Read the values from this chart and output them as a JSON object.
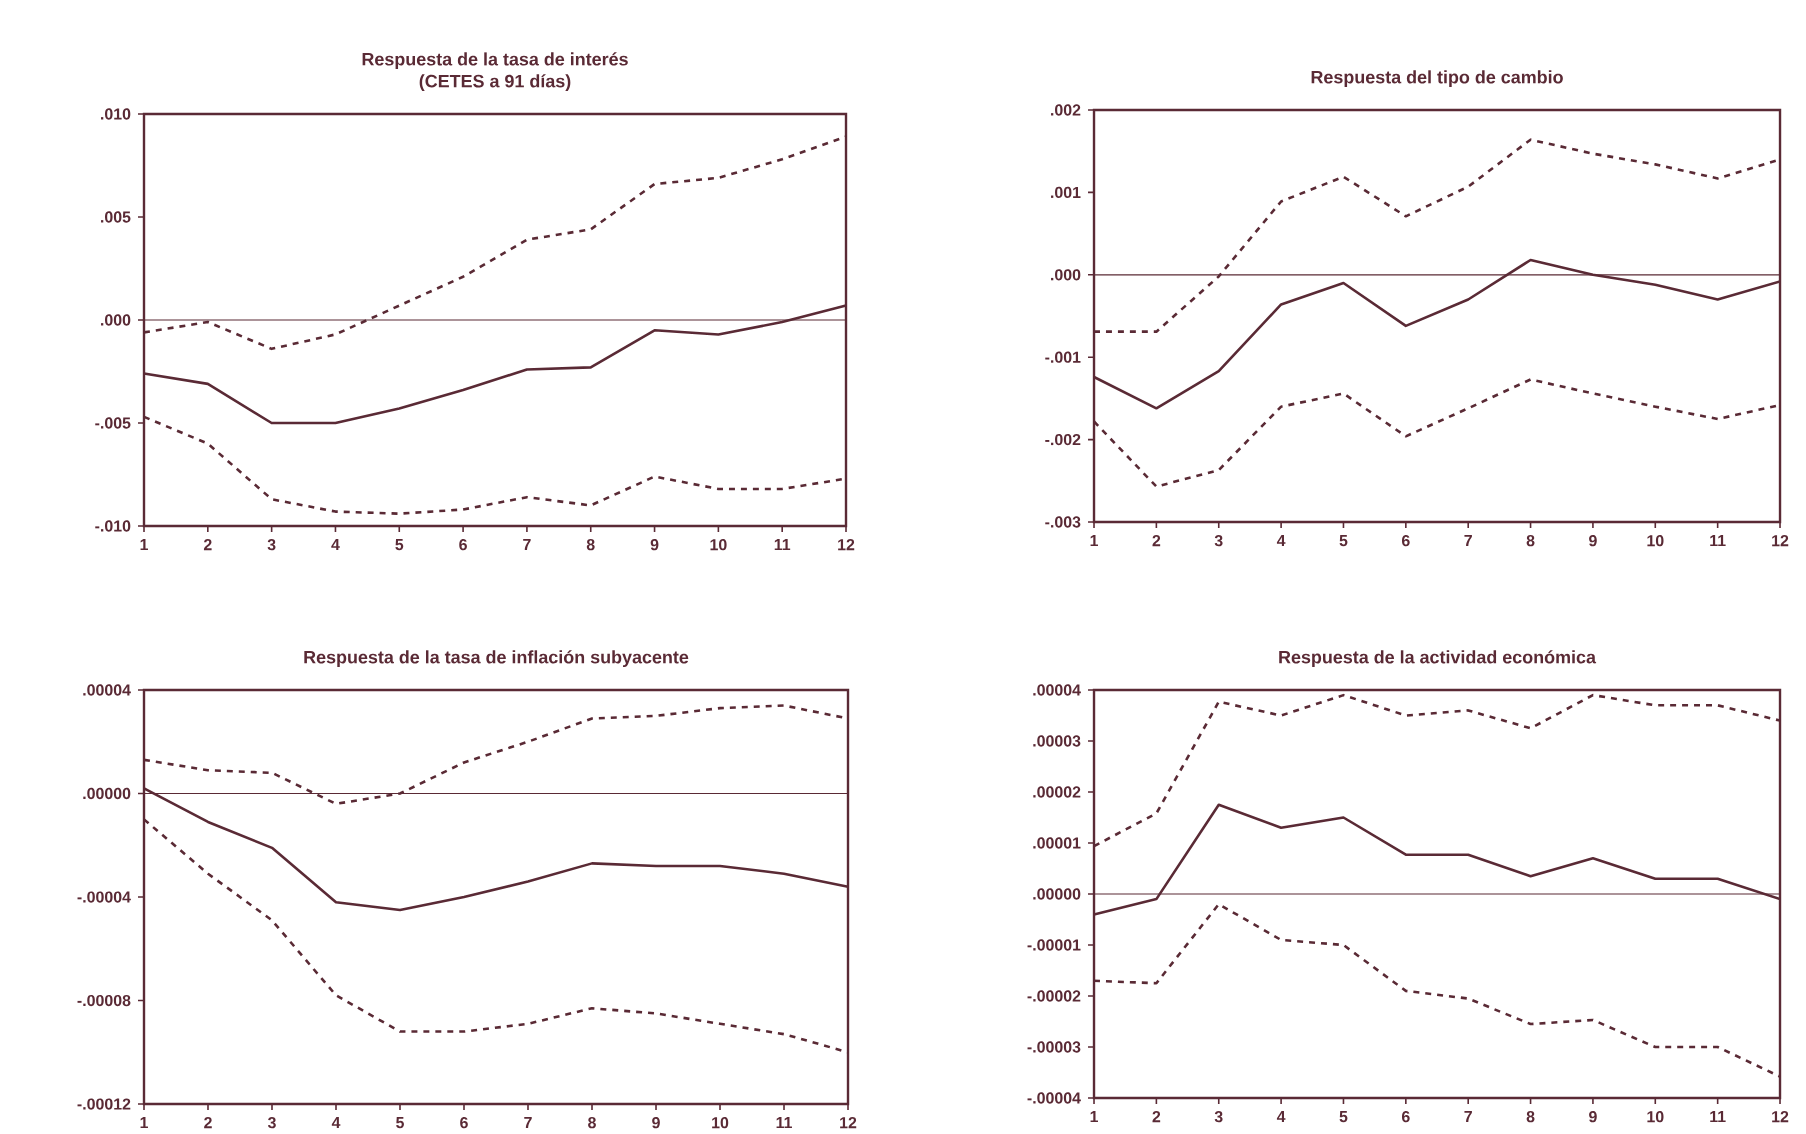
{
  "chart_data": [
    {
      "type": "line",
      "title": "Respuesta de la tasa de interés",
      "subtitle": "(CETES a 91 días)",
      "x": [
        1,
        2,
        3,
        4,
        5,
        6,
        7,
        8,
        9,
        10,
        11,
        12
      ],
      "xlim": [
        1,
        12
      ],
      "xticks": [
        1,
        2,
        3,
        4,
        5,
        6,
        7,
        8,
        9,
        10,
        11,
        12
      ],
      "ylim": [
        -0.01,
        0.01
      ],
      "yticks": [
        {
          "value": -0.01,
          "label": "-.010"
        },
        {
          "value": -0.005,
          "label": "-.005"
        },
        {
          "value": 0,
          "label": ".000"
        },
        {
          "value": 0.005,
          "label": ".005"
        },
        {
          "value": 0.01,
          "label": ".010"
        }
      ],
      "ref_lines": [
        {
          "axis": "y",
          "value": 0,
          "color": "#5a2a35"
        }
      ],
      "series": [
        {
          "color": "#5a2a35",
          "line_style": "solid",
          "values": [
            -0.0026,
            -0.0031,
            -0.005,
            -0.005,
            -0.0043,
            -0.0034,
            -0.0024,
            -0.0023,
            -0.0005,
            -0.0007,
            -0.0001,
            0.0007
          ]
        },
        {
          "color": "#5a2a35",
          "line_style": "dashed",
          "values": [
            -0.0006,
            -0.0001,
            -0.0014,
            -0.0007,
            0.0007,
            0.0021,
            0.0039,
            0.0044,
            0.0066,
            0.0069,
            0.0078,
            0.0089
          ]
        },
        {
          "color": "#5a2a35",
          "line_style": "dashed",
          "values": [
            -0.0047,
            -0.006,
            -0.0087,
            -0.0093,
            -0.0094,
            -0.0092,
            -0.0086,
            -0.009,
            -0.0076,
            -0.0082,
            -0.0082,
            -0.0077
          ]
        }
      ]
    },
    {
      "type": "line",
      "title": "Respuesta del tipo de cambio",
      "x": [
        1,
        2,
        3,
        4,
        5,
        6,
        7,
        8,
        9,
        10,
        11,
        12
      ],
      "xlim": [
        1,
        12
      ],
      "xticks": [
        1,
        2,
        3,
        4,
        5,
        6,
        7,
        8,
        9,
        10,
        11,
        12
      ],
      "ylim": [
        -0.003,
        0.002
      ],
      "yticks": [
        {
          "value": -0.003,
          "label": "-.003"
        },
        {
          "value": -0.002,
          "label": "-.002"
        },
        {
          "value": -0.001,
          "label": "-.001"
        },
        {
          "value": 0,
          "label": ".000"
        },
        {
          "value": 0.001,
          "label": ".001"
        },
        {
          "value": 0.002,
          "label": ".002"
        }
      ],
      "ref_lines": [
        {
          "axis": "y",
          "value": 0,
          "color": "#5a2a35"
        }
      ],
      "series": [
        {
          "color": "#5a2a35",
          "line_style": "solid",
          "values": [
            -0.00124,
            -0.00162,
            -0.00117,
            -0.00036,
            -0.0001,
            -0.00062,
            -0.0003,
            0.00018,
            0.0,
            -0.00012,
            -0.0003,
            -8e-05
          ]
        },
        {
          "color": "#5a2a35",
          "line_style": "dashed",
          "values": [
            -0.00069,
            -0.00069,
            -2e-05,
            0.00089,
            0.00119,
            0.00071,
            0.00107,
            0.00164,
            0.00147,
            0.00134,
            0.00117,
            0.0014
          ]
        },
        {
          "color": "#5a2a35",
          "line_style": "dashed",
          "values": [
            -0.00178,
            -0.00257,
            -0.00237,
            -0.0016,
            -0.00144,
            -0.00196,
            -0.00162,
            -0.00127,
            -0.00144,
            -0.0016,
            -0.00175,
            -0.00158
          ]
        }
      ]
    },
    {
      "type": "line",
      "title": "Respuesta de la tasa de inflación subyacente",
      "x": [
        1,
        2,
        3,
        4,
        5,
        6,
        7,
        8,
        9,
        10,
        11,
        12
      ],
      "xlim": [
        1,
        12
      ],
      "xticks": [
        1,
        2,
        3,
        4,
        5,
        6,
        7,
        8,
        9,
        10,
        11,
        12
      ],
      "ylim": [
        -0.00012,
        4e-05
      ],
      "yticks": [
        {
          "value": -0.00012,
          "label": "-.00012"
        },
        {
          "value": -8e-05,
          "label": "-.00008"
        },
        {
          "value": -4e-05,
          "label": "-.00004"
        },
        {
          "value": 0,
          "label": ".00000"
        },
        {
          "value": 4e-05,
          "label": ".00004"
        }
      ],
      "ref_lines": [
        {
          "axis": "y",
          "value": 0,
          "color": "#5a2a35"
        }
      ],
      "series": [
        {
          "color": "#5a2a35",
          "line_style": "solid",
          "values": [
            2e-06,
            -1.1e-05,
            -2.1e-05,
            -4.2e-05,
            -4.5e-05,
            -4e-05,
            -3.4e-05,
            -2.7e-05,
            -2.8e-05,
            -2.8e-05,
            -3.1e-05,
            -3.6e-05
          ]
        },
        {
          "color": "#5a2a35",
          "line_style": "dashed",
          "values": [
            1.3e-05,
            9e-06,
            8e-06,
            -4e-06,
            0.0,
            1.2e-05,
            2e-05,
            2.9e-05,
            3e-05,
            3.3e-05,
            3.4e-05,
            2.9e-05
          ]
        },
        {
          "color": "#5a2a35",
          "line_style": "dashed",
          "values": [
            -1e-05,
            -3.1e-05,
            -4.9e-05,
            -7.8e-05,
            -9.2e-05,
            -9.2e-05,
            -8.9e-05,
            -8.3e-05,
            -8.5e-05,
            -8.9e-05,
            -9.3e-05,
            -0.0001
          ]
        }
      ]
    },
    {
      "type": "line",
      "title": "Respuesta de la actividad económica",
      "x": [
        1,
        2,
        3,
        4,
        5,
        6,
        7,
        8,
        9,
        10,
        11,
        12
      ],
      "xlim": [
        1,
        12
      ],
      "xticks": [
        1,
        2,
        3,
        4,
        5,
        6,
        7,
        8,
        9,
        10,
        11,
        12
      ],
      "ylim": [
        -4e-05,
        4e-05
      ],
      "yticks": [
        {
          "value": -4e-05,
          "label": "-.00004"
        },
        {
          "value": -3e-05,
          "label": "-.00003"
        },
        {
          "value": -2e-05,
          "label": "-.00002"
        },
        {
          "value": -1e-05,
          "label": "-.00001"
        },
        {
          "value": 0,
          "label": ".00000"
        },
        {
          "value": 1e-05,
          "label": ".00001"
        },
        {
          "value": 2e-05,
          "label": ".00002"
        },
        {
          "value": 3e-05,
          "label": ".00003"
        },
        {
          "value": 4e-05,
          "label": ".00004"
        }
      ],
      "ref_lines": [
        {
          "axis": "y",
          "value": 0,
          "color": "#5a2a35"
        }
      ],
      "series": [
        {
          "color": "#5a2a35",
          "line_style": "solid",
          "values": [
            -4e-06,
            -1e-06,
            1.75e-05,
            1.3e-05,
            1.5e-05,
            7.7e-06,
            7.7e-06,
            3.5e-06,
            7e-06,
            3e-06,
            3e-06,
            -1e-06
          ]
        },
        {
          "color": "#5a2a35",
          "line_style": "dashed",
          "values": [
            9.4e-06,
            1.58e-05,
            3.77e-05,
            3.5e-05,
            3.9e-05,
            3.5e-05,
            3.6e-05,
            3.25e-05,
            3.9e-05,
            3.7e-05,
            3.7e-05,
            3.4e-05
          ]
        },
        {
          "color": "#5a2a35",
          "line_style": "dashed",
          "values": [
            -1.7e-05,
            -1.75e-05,
            -2e-06,
            -9e-06,
            -1e-05,
            -1.9e-05,
            -2.05e-05,
            -2.55e-05,
            -2.47e-05,
            -3e-05,
            -3e-05,
            -3.58e-05
          ]
        }
      ]
    }
  ]
}
